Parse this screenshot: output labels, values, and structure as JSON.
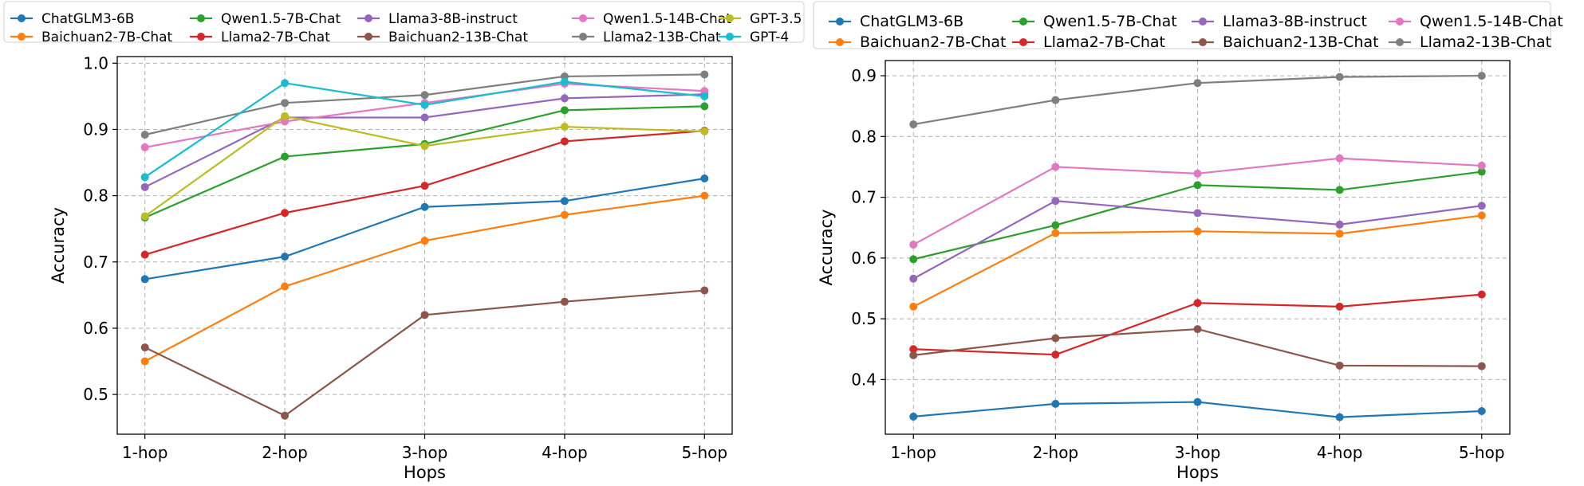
{
  "chart_data": [
    {
      "type": "line",
      "xlabel": "Hops",
      "ylabel": "Accuracy",
      "categories": [
        "1-hop",
        "2-hop",
        "3-hop",
        "4-hop",
        "5-hop"
      ],
      "ylim": [
        0.44,
        1.01
      ],
      "yticks": [
        "0.5",
        "0.6",
        "0.7",
        "0.8",
        "0.9",
        "1.0"
      ],
      "ytick_values": [
        0.5,
        0.6,
        0.7,
        0.8,
        0.9,
        1.0
      ],
      "grid": true,
      "legend_position": "top",
      "series": [
        {
          "name": "ChatGLM3-6B",
          "color": "#1f77b4",
          "values": [
            0.674,
            0.708,
            0.783,
            0.792,
            0.826
          ]
        },
        {
          "name": "Baichuan2-7B-Chat",
          "color": "#ff7f0e",
          "values": [
            0.55,
            0.663,
            0.732,
            0.771,
            0.8
          ]
        },
        {
          "name": "Qwen1.5-7B-Chat",
          "color": "#2ca02c",
          "values": [
            0.767,
            0.859,
            0.878,
            0.929,
            0.935
          ]
        },
        {
          "name": "Llama2-7B-Chat",
          "color": "#d62728",
          "values": [
            0.711,
            0.774,
            0.815,
            0.882,
            0.898
          ]
        },
        {
          "name": "Llama3-8B-instruct",
          "color": "#9467bd",
          "values": [
            0.813,
            0.918,
            0.918,
            0.947,
            0.953
          ]
        },
        {
          "name": "Baichuan2-13B-Chat",
          "color": "#8c564b",
          "values": [
            0.571,
            0.468,
            0.62,
            0.64,
            0.657
          ]
        },
        {
          "name": "Qwen1.5-14B-Chat",
          "color": "#e377c2",
          "values": [
            0.873,
            0.912,
            0.94,
            0.969,
            0.958
          ]
        },
        {
          "name": "Llama2-13B-Chat",
          "color": "#7f7f7f",
          "values": [
            0.892,
            0.94,
            0.952,
            0.98,
            0.983
          ]
        },
        {
          "name": "GPT-3.5",
          "color": "#bcbd22",
          "values": [
            0.769,
            0.92,
            0.875,
            0.904,
            0.897
          ]
        },
        {
          "name": "GPT-4",
          "color": "#17becf",
          "values": [
            0.828,
            0.97,
            0.937,
            0.972,
            0.95
          ]
        }
      ]
    },
    {
      "type": "line",
      "xlabel": "Hops",
      "ylabel": "Accuracy",
      "categories": [
        "1-hop",
        "2-hop",
        "3-hop",
        "4-hop",
        "5-hop"
      ],
      "ylim": [
        0.31,
        0.925
      ],
      "yticks": [
        "0.4",
        "0.5",
        "0.6",
        "0.7",
        "0.8",
        "0.9"
      ],
      "ytick_values": [
        0.4,
        0.5,
        0.6,
        0.7,
        0.8,
        0.9
      ],
      "grid": true,
      "legend_position": "top",
      "series": [
        {
          "name": "ChatGLM3-6B",
          "color": "#1f77b4",
          "values": [
            0.339,
            0.36,
            0.363,
            0.338,
            0.348
          ]
        },
        {
          "name": "Baichuan2-7B-Chat",
          "color": "#ff7f0e",
          "values": [
            0.52,
            0.641,
            0.644,
            0.64,
            0.67
          ]
        },
        {
          "name": "Qwen1.5-7B-Chat",
          "color": "#2ca02c",
          "values": [
            0.598,
            0.654,
            0.72,
            0.712,
            0.742
          ]
        },
        {
          "name": "Llama2-7B-Chat",
          "color": "#d62728",
          "values": [
            0.45,
            0.441,
            0.526,
            0.52,
            0.54
          ]
        },
        {
          "name": "Llama3-8B-instruct",
          "color": "#9467bd",
          "values": [
            0.566,
            0.694,
            0.674,
            0.655,
            0.686
          ]
        },
        {
          "name": "Baichuan2-13B-Chat",
          "color": "#8c564b",
          "values": [
            0.44,
            0.468,
            0.483,
            0.423,
            0.422
          ]
        },
        {
          "name": "Qwen1.5-14B-Chat",
          "color": "#e377c2",
          "values": [
            0.622,
            0.75,
            0.739,
            0.764,
            0.752
          ]
        },
        {
          "name": "Llama2-13B-Chat",
          "color": "#7f7f7f",
          "values": [
            0.82,
            0.86,
            0.888,
            0.898,
            0.9
          ]
        }
      ]
    }
  ]
}
